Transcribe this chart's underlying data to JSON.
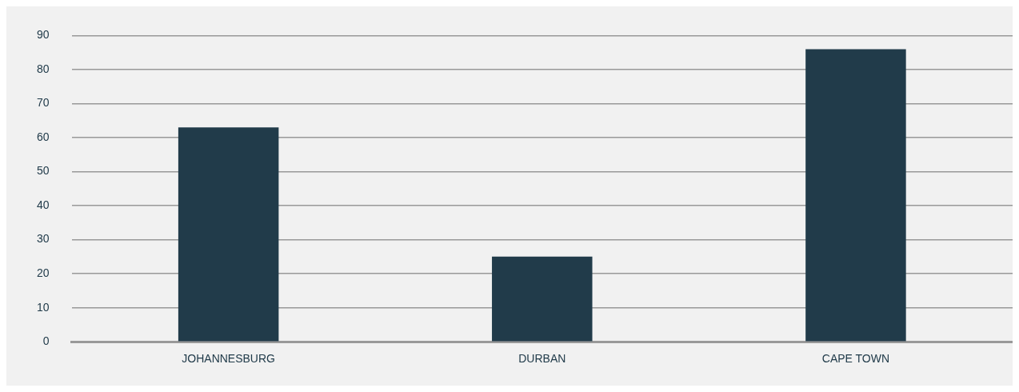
{
  "chart_data": {
    "type": "bar",
    "categories": [
      "JOHANNESBURG",
      "DURBAN",
      "CAPE TOWN"
    ],
    "values": [
      63,
      25,
      86
    ],
    "color": "#213b4a",
    "ylim": [
      0,
      90
    ],
    "yticks": [
      0,
      10,
      20,
      30,
      40,
      50,
      60,
      70,
      80,
      90
    ],
    "grid": "y",
    "legend": false
  }
}
